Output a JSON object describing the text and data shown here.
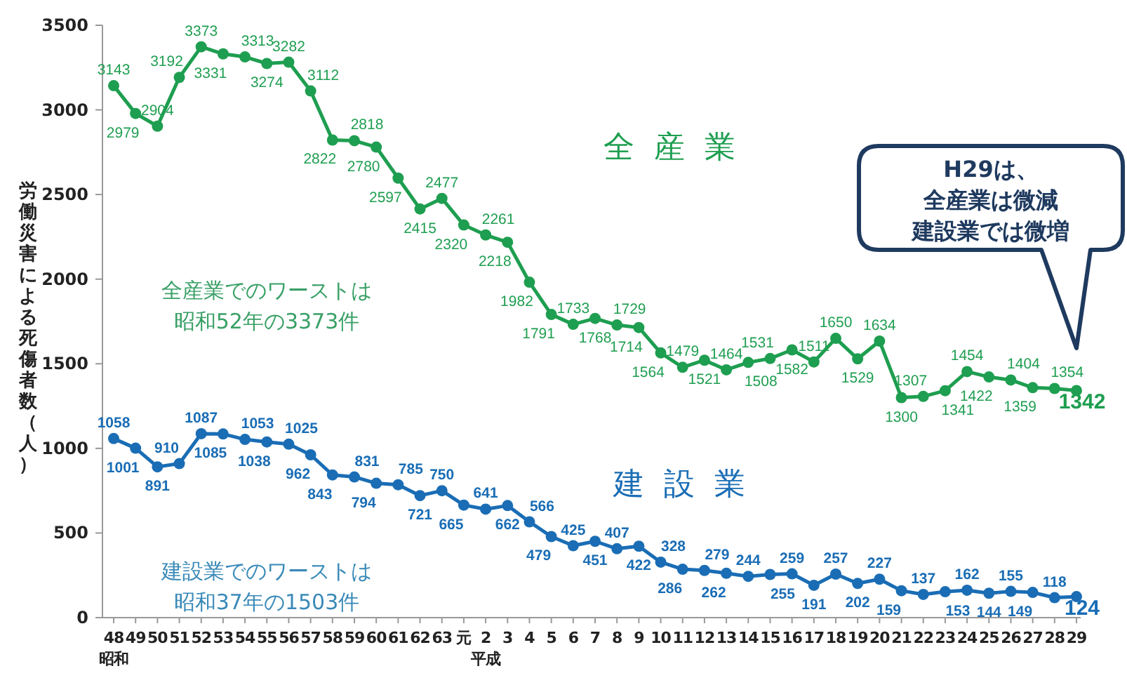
{
  "chart_data": {
    "type": "line",
    "ylabel": "労働災害による死傷者数（人）",
    "ylim": [
      0,
      3500
    ],
    "yticks": [
      0,
      500,
      1000,
      1500,
      2000,
      2500,
      3000,
      3500
    ],
    "marker": "circle",
    "data_labels": true,
    "categories": [
      "48\n昭和",
      "49",
      "50",
      "51",
      "52",
      "53",
      "54",
      "55",
      "56",
      "57",
      "58",
      "59",
      "60",
      "61",
      "62",
      "63",
      "元",
      "2\n平成",
      "3",
      "4",
      "5",
      "6",
      "7",
      "8",
      "9",
      "10",
      "11",
      "12",
      "13",
      "14",
      "15",
      "16",
      "17",
      "18",
      "19",
      "20",
      "21",
      "22",
      "23",
      "24",
      "25",
      "26",
      "27",
      "28",
      "29"
    ],
    "series": [
      {
        "name": "全産業",
        "color": "#1e9e50",
        "values": [
          3143,
          2979,
          2904,
          3192,
          3373,
          3331,
          3313,
          3274,
          3282,
          3112,
          2822,
          2818,
          2780,
          2597,
          2415,
          2477,
          2320,
          2261,
          2218,
          1982,
          1791,
          1733,
          1768,
          1729,
          1714,
          1564,
          1479,
          1521,
          1464,
          1508,
          1531,
          1582,
          1511,
          1650,
          1529,
          1634,
          1300,
          1307,
          1341,
          1454,
          1422,
          1404,
          1359,
          1354,
          1342
        ]
      },
      {
        "name": "建設業",
        "color": "#1a6db5",
        "values": [
          1058,
          1001,
          891,
          910,
          1087,
          1085,
          1053,
          1038,
          1025,
          962,
          843,
          831,
          794,
          785,
          721,
          750,
          665,
          641,
          662,
          566,
          479,
          425,
          451,
          407,
          422,
          328,
          286,
          279,
          262,
          244,
          255,
          259,
          191,
          257,
          202,
          227,
          159,
          137,
          153,
          162,
          144,
          155,
          149,
          118,
          124
        ]
      }
    ],
    "annotations": [
      "全産業でのワーストは",
      "昭和52年の3373件",
      "建設業でのワーストは",
      "昭和37年の1503件",
      "H29は、",
      "全産業は微減",
      "建設業では微増"
    ]
  }
}
